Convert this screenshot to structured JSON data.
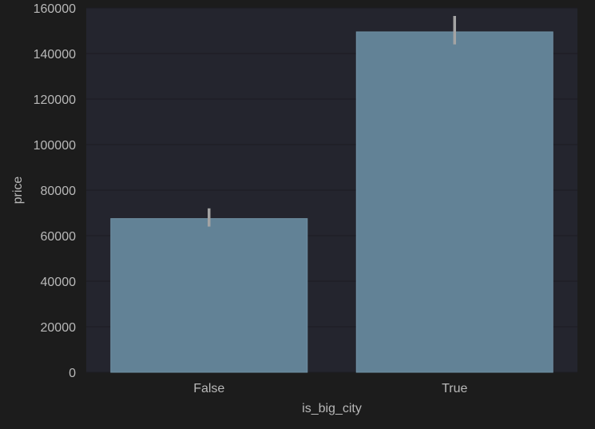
{
  "chart_data": {
    "type": "bar",
    "title": "",
    "xlabel": "is_big_city",
    "ylabel": "price",
    "categories": [
      "False",
      "True"
    ],
    "values": [
      67500,
      149500
    ],
    "error_bars": [
      {
        "low": 64000,
        "high": 72000
      },
      {
        "low": 144000,
        "high": 156500
      }
    ],
    "ylim": [
      0,
      160000
    ],
    "yticks": [
      0,
      20000,
      40000,
      60000,
      80000,
      100000,
      120000,
      140000,
      160000
    ],
    "ytick_labels": [
      "0",
      "20000",
      "40000",
      "60000",
      "80000",
      "100000",
      "120000",
      "140000",
      "160000"
    ],
    "grid": true,
    "legend": "none",
    "colors": {
      "figure_background": "#1c1c1c",
      "plot_background": "#24252e",
      "grid": "#1b1c22",
      "bar": "#628296",
      "bar_edge": "#6f8fa3",
      "error_bar": "#a3a3a3",
      "text": "#b8b8b8"
    }
  }
}
